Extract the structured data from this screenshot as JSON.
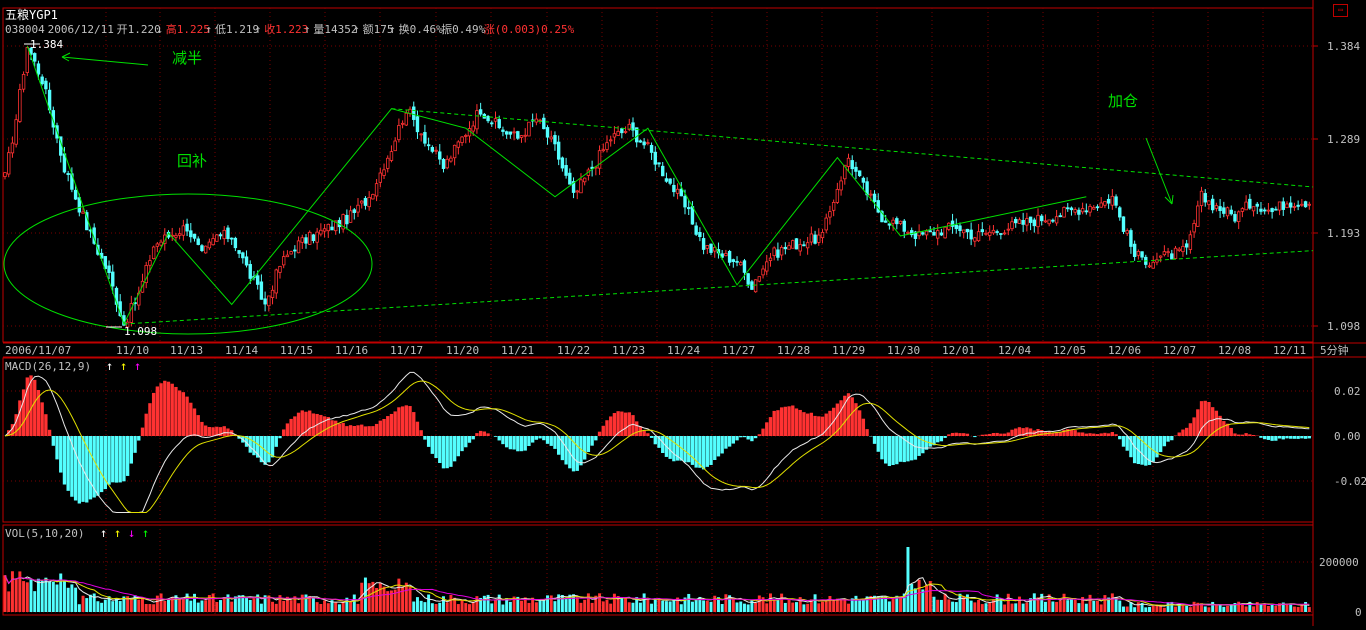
{
  "window": {
    "title": "五粮YGP1",
    "restore_icon": "restore-window-icon"
  },
  "quote": {
    "code": "038004",
    "date": "2006/12/11",
    "open": "开1.220",
    "high": "高1.225",
    "low": "低1.219",
    "close": "收1.223",
    "volume": "量14352",
    "amount": "额175",
    "turnover": "换0.46%",
    "amplitude": "振0.49%",
    "change": "涨(0.003)0.25%",
    "arrow_open": "↓",
    "arrow_up": "↑"
  },
  "annotations": {
    "halve": "减半",
    "refill": "回补",
    "add_position": "加仓",
    "max_label": "1.384",
    "min_label": "1.098"
  },
  "period_label": "5分钟",
  "colors": {
    "up": "#ff3232",
    "down": "#54ffff",
    "trend": "#00e000",
    "axis": "#c00000",
    "grid": "#7a0000",
    "text": "#c0c0c0",
    "white": "#ffffff",
    "yellow": "#ffff00",
    "magenta": "#ff00ff",
    "green": "#00ff00",
    "ma_white": "#e8e8e8",
    "ma_yellow": "#e0e000",
    "ma_magenta": "#e000e0",
    "ma_green": "#00c000"
  },
  "chart_data": [
    {
      "type": "candlestick",
      "ylim": [
        1.098,
        1.384
      ],
      "yticks": [
        1.384,
        1.289,
        1.193,
        1.098
      ],
      "x_labels": [
        "2006/11/07",
        "11/10",
        "11/13",
        "11/14",
        "11/15",
        "11/16",
        "11/17",
        "11/20",
        "11/21",
        "11/22",
        "11/23",
        "11/24",
        "11/27",
        "11/28",
        "11/29",
        "11/30",
        "12/01",
        "12/04",
        "12/05",
        "12/06",
        "12/07",
        "12/08",
        "12/11"
      ],
      "path_points": [
        [
          0,
          1.25
        ],
        [
          3,
          1.31
        ],
        [
          6,
          1.384
        ],
        [
          10,
          1.35
        ],
        [
          16,
          1.26
        ],
        [
          22,
          1.2
        ],
        [
          28,
          1.15
        ],
        [
          32,
          1.1
        ],
        [
          36,
          1.13
        ],
        [
          40,
          1.18
        ],
        [
          44,
          1.19
        ],
        [
          49,
          1.2
        ],
        [
          53,
          1.17
        ],
        [
          57,
          1.19
        ],
        [
          61,
          1.19
        ],
        [
          66,
          1.15
        ],
        [
          70,
          1.12
        ],
        [
          74,
          1.16
        ],
        [
          78,
          1.18
        ],
        [
          83,
          1.19
        ],
        [
          88,
          1.2
        ],
        [
          93,
          1.21
        ],
        [
          98,
          1.23
        ],
        [
          104,
          1.28
        ],
        [
          108,
          1.32
        ],
        [
          113,
          1.29
        ],
        [
          118,
          1.26
        ],
        [
          123,
          1.29
        ],
        [
          128,
          1.32
        ],
        [
          133,
          1.3
        ],
        [
          138,
          1.29
        ],
        [
          143,
          1.31
        ],
        [
          148,
          1.28
        ],
        [
          153,
          1.23
        ],
        [
          158,
          1.26
        ],
        [
          163,
          1.29
        ],
        [
          168,
          1.3
        ],
        [
          173,
          1.28
        ],
        [
          178,
          1.25
        ],
        [
          183,
          1.22
        ],
        [
          188,
          1.18
        ],
        [
          193,
          1.17
        ],
        [
          197,
          1.165
        ],
        [
          201,
          1.14
        ],
        [
          206,
          1.17
        ],
        [
          211,
          1.18
        ],
        [
          216,
          1.185
        ],
        [
          220,
          1.19
        ],
        [
          224,
          1.24
        ],
        [
          227,
          1.27
        ],
        [
          231,
          1.24
        ],
        [
          236,
          1.21
        ],
        [
          241,
          1.2
        ],
        [
          246,
          1.19
        ],
        [
          251,
          1.195
        ],
        [
          256,
          1.2
        ],
        [
          261,
          1.19
        ],
        [
          266,
          1.195
        ],
        [
          271,
          1.2
        ],
        [
          276,
          1.205
        ],
        [
          281,
          1.21
        ],
        [
          286,
          1.215
        ],
        [
          291,
          1.22
        ],
        [
          296,
          1.225
        ],
        [
          298,
          1.23
        ],
        [
          301,
          1.2
        ],
        [
          304,
          1.17
        ],
        [
          308,
          1.165
        ],
        [
          313,
          1.17
        ],
        [
          318,
          1.175
        ],
        [
          322,
          1.23
        ],
        [
          326,
          1.22
        ],
        [
          331,
          1.21
        ],
        [
          336,
          1.225
        ],
        [
          341,
          1.215
        ],
        [
          345,
          1.225
        ]
      ]
    },
    {
      "type": "line",
      "name": "MACD(26,12,9)",
      "ylim": [
        -0.035,
        0.035
      ],
      "yticks": [
        0.02,
        0.0,
        -0.02
      ],
      "ytick_labels": [
        "0.02",
        "0.00",
        "-0.02"
      ],
      "indicator_arrows": [
        "↑",
        "↑",
        "↑"
      ]
    },
    {
      "type": "bar",
      "name": "VOL(5,10,20)",
      "ylim": [
        0,
        280000
      ],
      "yticks": [
        200000,
        0
      ],
      "ytick_labels": [
        "200000",
        "0"
      ],
      "indicator_arrows": [
        "↑",
        "↑",
        "↓",
        "↑"
      ]
    }
  ]
}
